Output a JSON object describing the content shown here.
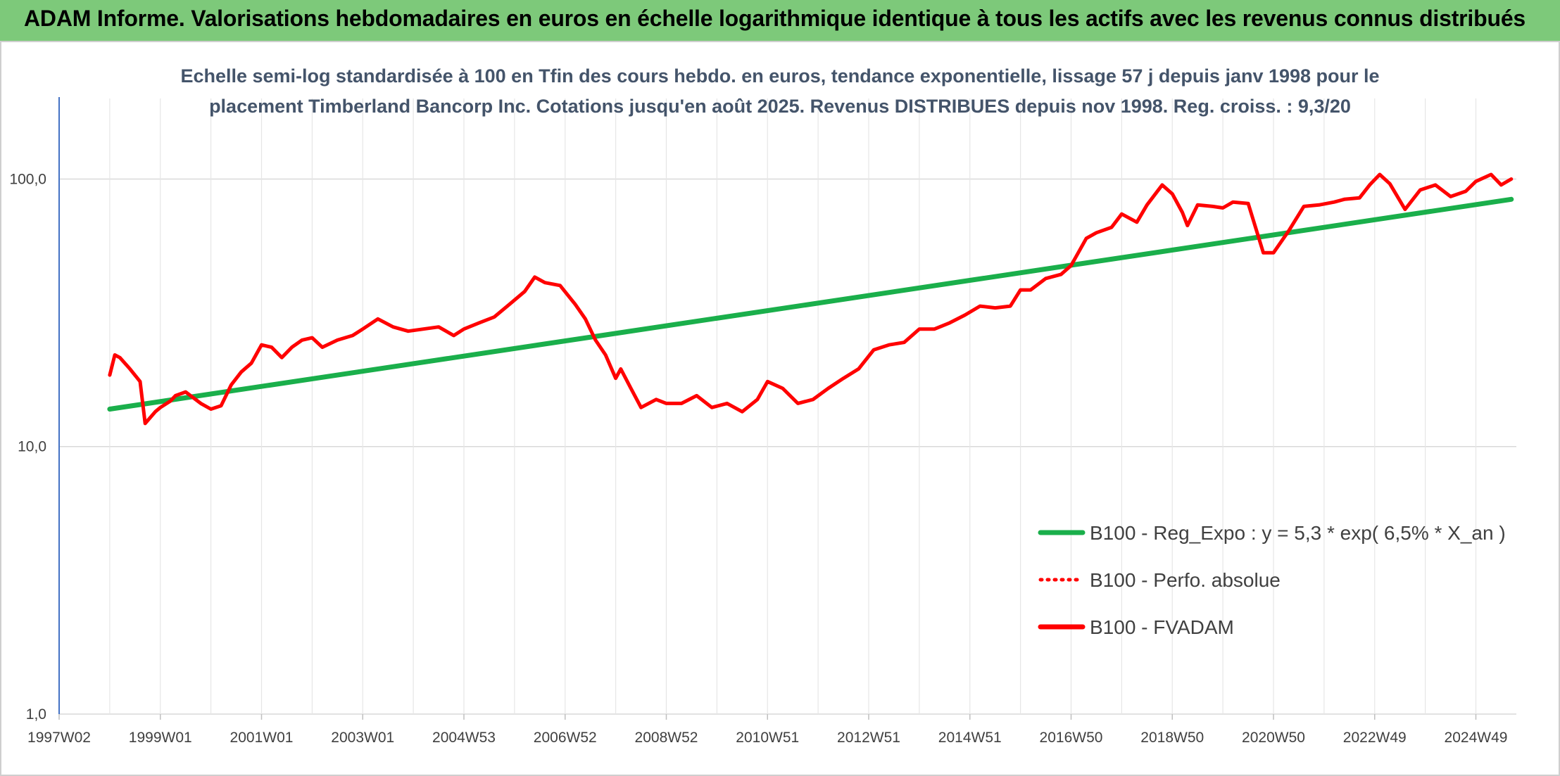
{
  "header": {
    "title": "ADAM Informe. Valorisations hebdomadaires en euros en échelle logarithmique identique à tous les actifs avec les revenus connus distribués"
  },
  "colors": {
    "header_band": "#7dc97a",
    "accent_corner": "#f5b800",
    "regression": "#1aaf4b",
    "fvadam": "#ff0000",
    "perfo": "#ff0000",
    "subtitle": "#44546a"
  },
  "chart_data": {
    "type": "line",
    "title_line1": "Echelle semi-log standardisée à 100 en Tfin des cours hebdo. en euros, tendance exponentielle, lissage 57 j depuis janv 1998 pour le",
    "title_line2": "placement Timberland Bancorp Inc. Cotations jusqu'en août 2025. Revenus DISTRIBUES depuis nov 1998. Reg. croiss. : 9,3/20",
    "y_scale": "log",
    "ylim": [
      1,
      200
    ],
    "y_ticks": [
      "100,0",
      "10,0",
      "1,0"
    ],
    "x_tick_labels": [
      "1997W02",
      "1999W01",
      "2001W01",
      "2003W01",
      "2004W53",
      "2006W52",
      "2008W52",
      "2010W51",
      "2012W51",
      "2014W51",
      "2016W50",
      "2018W50",
      "2020W50",
      "2022W49",
      "2024W49"
    ],
    "x_range": [
      1997.0,
      2025.8
    ],
    "grid": true,
    "legend_position": "bottom-right",
    "series": [
      {
        "name": "B100 - Reg_Expo : y = 5,3 * exp( 6,5% *  X_an )",
        "style": "solid",
        "color": "#1aaf4b",
        "x": [
          1998.0,
          2025.7
        ],
        "y": [
          13.8,
          84.0
        ]
      },
      {
        "name": "B100 - Perfo. absolue",
        "style": "dotted",
        "color": "#ff0000",
        "x": [],
        "y": []
      },
      {
        "name": "B100 - FVADAM",
        "style": "solid",
        "color": "#ff0000",
        "x": [
          1998.0,
          1998.1,
          1998.2,
          1998.4,
          1998.6,
          1998.7,
          1998.9,
          1999.0,
          1999.2,
          1999.3,
          1999.5,
          1999.8,
          2000.0,
          2000.2,
          2000.4,
          2000.6,
          2000.8,
          2001.0,
          2001.2,
          2001.4,
          2001.6,
          2001.8,
          2002.0,
          2002.2,
          2002.5,
          2002.8,
          2003.0,
          2003.3,
          2003.6,
          2003.9,
          2004.2,
          2004.5,
          2004.8,
          2005.0,
          2005.3,
          2005.6,
          2005.9,
          2006.2,
          2006.4,
          2006.6,
          2006.9,
          2007.2,
          2007.4,
          2007.6,
          2007.8,
          2008.0,
          2008.1,
          2008.3,
          2008.5,
          2008.8,
          2009.0,
          2009.3,
          2009.6,
          2009.9,
          2010.2,
          2010.5,
          2010.8,
          2011.0,
          2011.3,
          2011.6,
          2011.9,
          2012.2,
          2012.5,
          2012.8,
          2013.1,
          2013.4,
          2013.7,
          2014.0,
          2014.3,
          2014.6,
          2014.9,
          2015.2,
          2015.5,
          2015.8,
          2016.0,
          2016.2,
          2016.5,
          2016.8,
          2017.0,
          2017.3,
          2017.5,
          2017.8,
          2018.0,
          2018.3,
          2018.5,
          2018.8,
          2019.0,
          2019.2,
          2019.3,
          2019.5,
          2019.8,
          2020.0,
          2020.2,
          2020.5,
          2020.8,
          2021.0,
          2021.3,
          2021.6,
          2021.9,
          2022.2,
          2022.4,
          2022.7,
          2022.9,
          2023.1,
          2023.3,
          2023.6,
          2023.9,
          2024.2,
          2024.5,
          2024.8,
          2025.0,
          2025.3,
          2025.5,
          2025.7
        ],
        "y": [
          18.5,
          22.0,
          21.5,
          19.5,
          17.5,
          12.2,
          13.5,
          14.0,
          14.8,
          15.5,
          16.0,
          14.5,
          13.8,
          14.2,
          17.0,
          19.0,
          20.5,
          24.0,
          23.5,
          21.5,
          23.5,
          25.0,
          25.5,
          23.5,
          25.0,
          26.0,
          27.5,
          30.0,
          28.0,
          27.0,
          27.5,
          28.0,
          26.0,
          27.5,
          29.0,
          30.5,
          34.0,
          38.0,
          43.0,
          41.0,
          40.0,
          34.0,
          30.0,
          25.0,
          22.0,
          18.0,
          19.5,
          16.5,
          14.0,
          15.0,
          14.5,
          14.5,
          15.5,
          14.0,
          14.5,
          13.5,
          15.0,
          17.5,
          16.5,
          14.5,
          15.0,
          16.5,
          18.0,
          19.5,
          23.0,
          24.0,
          24.5,
          27.5,
          27.5,
          29.0,
          31.0,
          33.5,
          33.0,
          33.5,
          38.5,
          38.5,
          42.5,
          44.0,
          47.5,
          60.0,
          63.0,
          66.0,
          74.0,
          69.0,
          80.0,
          95.0,
          88.0,
          75.0,
          67.0,
          80.0,
          79.0,
          78.0,
          82.0,
          81.0,
          53.0,
          53.0,
          64.0,
          79.0,
          80.0,
          82.0,
          84.0,
          85.0,
          95.0,
          104.0,
          96.0,
          77.0,
          91.0,
          95.0,
          86.0,
          90.0,
          98.0,
          104.0,
          95.0,
          100.0
        ]
      }
    ]
  }
}
